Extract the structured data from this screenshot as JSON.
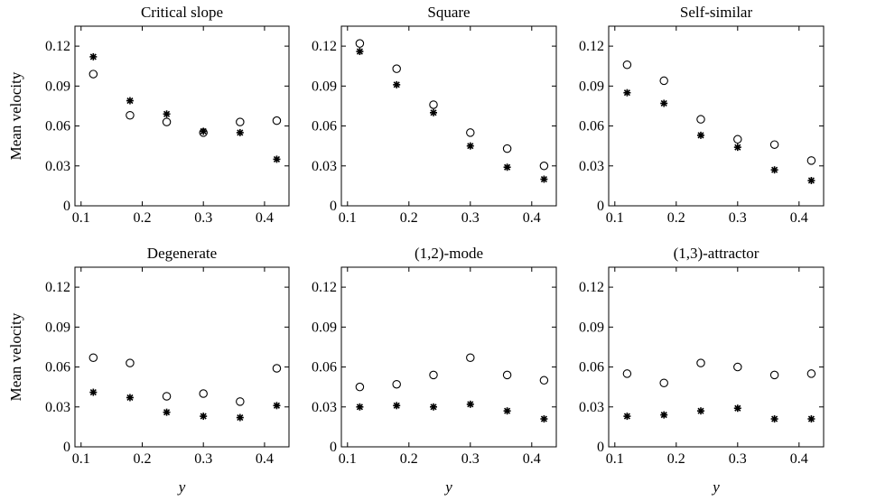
{
  "chart_data": [
    {
      "type": "scatter",
      "title": "Critical slope",
      "xlabel": "",
      "ylabel": "Mean velocity",
      "xlim": [
        0.09,
        0.44
      ],
      "ylim": [
        0,
        0.135
      ],
      "xticks": [
        "0.1",
        "0.2",
        "0.3",
        "0.4"
      ],
      "yticks": [
        "0",
        "0.03",
        "0.06",
        "0.09",
        "0.12"
      ],
      "x": [
        0.12,
        0.18,
        0.24,
        0.3,
        0.36,
        0.42
      ],
      "series": [
        {
          "marker": "circle",
          "values": [
            0.099,
            0.068,
            0.063,
            0.055,
            0.063,
            0.064
          ]
        },
        {
          "marker": "star",
          "values": [
            0.112,
            0.079,
            0.069,
            0.056,
            0.055,
            0.035
          ]
        }
      ]
    },
    {
      "type": "scatter",
      "title": "Square",
      "xlabel": "",
      "ylabel": "",
      "xlim": [
        0.09,
        0.44
      ],
      "ylim": [
        0,
        0.135
      ],
      "xticks": [
        "0.1",
        "0.2",
        "0.3",
        "0.4"
      ],
      "yticks": [
        "0",
        "0.03",
        "0.06",
        "0.09",
        "0.12"
      ],
      "x": [
        0.12,
        0.18,
        0.24,
        0.3,
        0.36,
        0.42
      ],
      "series": [
        {
          "marker": "circle",
          "values": [
            0.122,
            0.103,
            0.076,
            0.055,
            0.043,
            0.03
          ]
        },
        {
          "marker": "star",
          "values": [
            0.116,
            0.091,
            0.07,
            0.045,
            0.029,
            0.02
          ]
        }
      ]
    },
    {
      "type": "scatter",
      "title": "Self-similar",
      "xlabel": "",
      "ylabel": "",
      "xlim": [
        0.09,
        0.44
      ],
      "ylim": [
        0,
        0.135
      ],
      "xticks": [
        "0.1",
        "0.2",
        "0.3",
        "0.4"
      ],
      "yticks": [
        "0",
        "0.03",
        "0.06",
        "0.09",
        "0.12"
      ],
      "x": [
        0.12,
        0.18,
        0.24,
        0.3,
        0.36,
        0.42
      ],
      "series": [
        {
          "marker": "circle",
          "values": [
            0.106,
            0.094,
            0.065,
            0.05,
            0.046,
            0.034
          ]
        },
        {
          "marker": "star",
          "values": [
            0.085,
            0.077,
            0.053,
            0.044,
            0.027,
            0.019
          ]
        }
      ]
    },
    {
      "type": "scatter",
      "title": "Degenerate",
      "xlabel": "y",
      "ylabel": "Mean velocity",
      "xlim": [
        0.09,
        0.44
      ],
      "ylim": [
        0,
        0.135
      ],
      "xticks": [
        "0.1",
        "0.2",
        "0.3",
        "0.4"
      ],
      "yticks": [
        "0",
        "0.03",
        "0.06",
        "0.09",
        "0.12"
      ],
      "x": [
        0.12,
        0.18,
        0.24,
        0.3,
        0.36,
        0.42
      ],
      "series": [
        {
          "marker": "circle",
          "values": [
            0.067,
            0.063,
            0.038,
            0.04,
            0.034,
            0.059
          ]
        },
        {
          "marker": "star",
          "values": [
            0.041,
            0.037,
            0.026,
            0.023,
            0.022,
            0.031
          ]
        }
      ]
    },
    {
      "type": "scatter",
      "title": "(1,2)-mode",
      "xlabel": "y",
      "ylabel": "",
      "xlim": [
        0.09,
        0.44
      ],
      "ylim": [
        0,
        0.135
      ],
      "xticks": [
        "0.1",
        "0.2",
        "0.3",
        "0.4"
      ],
      "yticks": [
        "0",
        "0.03",
        "0.06",
        "0.09",
        "0.12"
      ],
      "x": [
        0.12,
        0.18,
        0.24,
        0.3,
        0.36,
        0.42
      ],
      "series": [
        {
          "marker": "circle",
          "values": [
            0.045,
            0.047,
            0.054,
            0.067,
            0.054,
            0.05
          ]
        },
        {
          "marker": "star",
          "values": [
            0.03,
            0.031,
            0.03,
            0.032,
            0.027,
            0.021
          ]
        }
      ]
    },
    {
      "type": "scatter",
      "title": "(1,3)-attractor",
      "xlabel": "y",
      "ylabel": "",
      "xlim": [
        0.09,
        0.44
      ],
      "ylim": [
        0,
        0.135
      ],
      "xticks": [
        "0.1",
        "0.2",
        "0.3",
        "0.4"
      ],
      "yticks": [
        "0",
        "0.03",
        "0.06",
        "0.09",
        "0.12"
      ],
      "x": [
        0.12,
        0.18,
        0.24,
        0.3,
        0.36,
        0.42
      ],
      "series": [
        {
          "marker": "circle",
          "values": [
            0.055,
            0.048,
            0.063,
            0.06,
            0.054,
            0.055
          ]
        },
        {
          "marker": "star",
          "values": [
            0.023,
            0.024,
            0.027,
            0.029,
            0.021,
            0.021
          ]
        }
      ]
    }
  ]
}
